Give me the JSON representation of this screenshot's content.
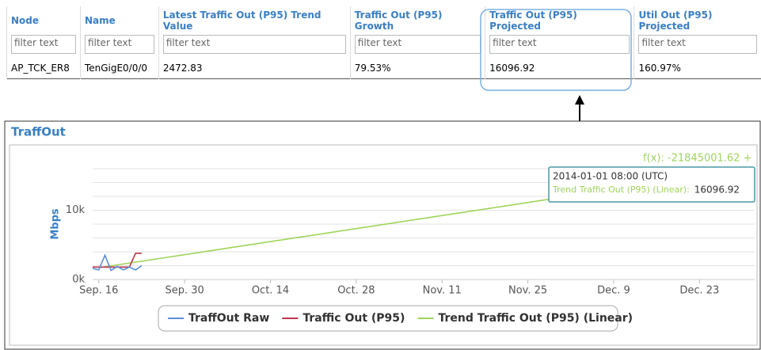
{
  "table": {
    "headers": [
      "Node",
      "Name",
      "Latest Traffic Out (P95) Trend Value",
      "Traffic Out (P95) Growth",
      "Traffic Out (P95) Projected",
      "Util Out (P95) Projected"
    ],
    "filter_placeholder": "filter text",
    "rows": [
      [
        "AP_TCK_ER8",
        "TenGigE0/0/0",
        "2472.83",
        "79.53%",
        "16096.92",
        "160.97%"
      ]
    ]
  },
  "chart_data": {
    "type": "line",
    "title": "TraffOut",
    "y_label": "Mbps",
    "annotation": "f(x): -21845001.62 +",
    "tooltip": {
      "time": "2014-01-01 08:00 (UTC)",
      "label": "Trend Traffic Out (P95) (Linear):",
      "value": "16096.92"
    },
    "xlim": [
      "2013-09-15",
      "2014-01-01"
    ],
    "xticks": [
      {
        "value": "2013-09-16",
        "label": "Sep. 16"
      },
      {
        "value": "2013-09-30",
        "label": "Sep. 30"
      },
      {
        "value": "2013-10-14",
        "label": "Oct. 14"
      },
      {
        "value": "2013-10-28",
        "label": "Oct. 28"
      },
      {
        "value": "2013-11-11",
        "label": "Nov. 11"
      },
      {
        "value": "2013-11-25",
        "label": "Nov. 25"
      },
      {
        "value": "2013-12-09",
        "label": "Dec. 9"
      },
      {
        "value": "2013-12-23",
        "label": "Dec. 23"
      }
    ],
    "ylim": [
      0,
      16000
    ],
    "yticks": [
      {
        "value": 0,
        "label": "0k"
      },
      {
        "value": 10000,
        "label": "10k"
      }
    ],
    "ygrid": [
      0,
      2000,
      4000,
      6000,
      8000,
      10000,
      12000,
      14000,
      16000
    ],
    "grid": true,
    "series": [
      {
        "name": "TraffOut Raw",
        "color": "#5b8fd6",
        "x": [
          "2013-09-15",
          "2013-09-16",
          "2013-09-17",
          "2013-09-18",
          "2013-09-19",
          "2013-09-20",
          "2013-09-21",
          "2013-09-22",
          "2013-09-23"
        ],
        "values": [
          1600,
          1400,
          3500,
          1300,
          1900,
          1400,
          1800,
          1400,
          2000
        ]
      },
      {
        "name": "Traffic Out (P95)",
        "color": "#c0334d",
        "x": [
          "2013-09-15",
          "2013-09-16",
          "2013-09-17",
          "2013-09-18",
          "2013-09-19",
          "2013-09-20",
          "2013-09-21",
          "2013-09-22",
          "2013-09-23"
        ],
        "values": [
          1800,
          1800,
          1800,
          1800,
          1800,
          1800,
          1800,
          3800,
          3800
        ]
      },
      {
        "name": "Trend Traffic Out (P95) (Linear)",
        "color": "#9fd45a",
        "x": [
          "2013-09-16",
          "2014-01-01"
        ],
        "values": [
          1700,
          16096.92
        ]
      }
    ]
  }
}
